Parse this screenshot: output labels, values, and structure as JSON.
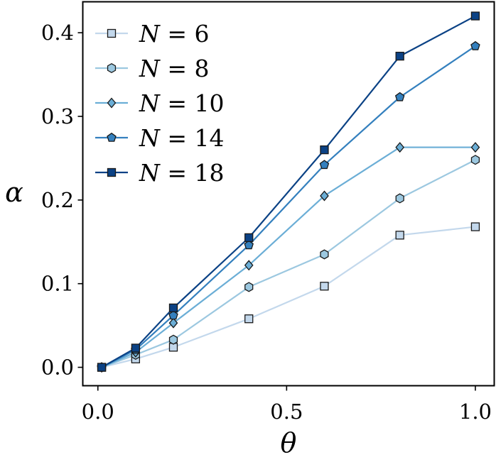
{
  "chart_data": {
    "type": "line",
    "xlabel": "θ",
    "ylabel": "α",
    "xlim": [
      -0.04,
      1.05
    ],
    "ylim": [
      -0.022,
      0.437
    ],
    "xticks": [
      0.0,
      0.5,
      1.0
    ],
    "xtick_labels": [
      "0.0",
      "0.5",
      "1.0"
    ],
    "yticks": [
      0.0,
      0.1,
      0.2,
      0.3,
      0.4
    ],
    "ytick_labels": [
      "0.0",
      "0.1",
      "0.2",
      "0.3",
      "0.4"
    ],
    "grid": false,
    "legend_position": "top-left",
    "x": [
      0.01,
      0.1,
      0.2,
      0.4,
      0.6,
      0.8,
      1.0
    ],
    "series": [
      {
        "name": "N = 6",
        "label_var": "N",
        "label_value": "6",
        "marker": "square",
        "color": "#c3d8ec",
        "values": [
          0.0,
          0.01,
          0.024,
          0.058,
          0.097,
          0.158,
          0.168
        ]
      },
      {
        "name": "N = 8",
        "label_var": "N",
        "label_value": "8",
        "marker": "hexagon",
        "color": "#9cc8e0",
        "values": [
          0.0,
          0.015,
          0.033,
          0.096,
          0.135,
          0.202,
          0.248
        ]
      },
      {
        "name": "N = 10",
        "label_var": "N",
        "label_value": "10",
        "marker": "diamond",
        "color": "#6baed6",
        "values": [
          0.0,
          0.018,
          0.053,
          0.122,
          0.205,
          0.263,
          0.263
        ]
      },
      {
        "name": "N = 14",
        "label_var": "N",
        "label_value": "14",
        "marker": "pentagon",
        "color": "#3480be",
        "values": [
          0.0,
          0.021,
          0.062,
          0.146,
          0.242,
          0.323,
          0.384
        ]
      },
      {
        "name": "N = 18",
        "label_var": "N",
        "label_value": "18",
        "marker": "square",
        "color": "#0b4285",
        "values": [
          0.0,
          0.023,
          0.071,
          0.155,
          0.26,
          0.372,
          0.42
        ]
      }
    ]
  }
}
